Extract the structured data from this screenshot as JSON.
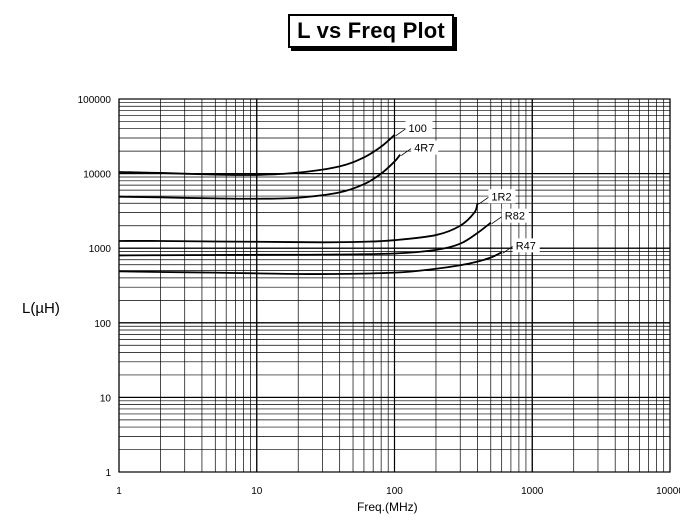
{
  "chart_data": {
    "type": "line",
    "title": "L vs Freq Plot",
    "xlabel": "Freq.(MHz)",
    "ylabel": "L(µH)",
    "x_scale": "log",
    "y_scale": "log",
    "xlim": [
      1,
      10000
    ],
    "ylim": [
      1,
      100000
    ],
    "x_ticks": [
      "1",
      "10",
      "100",
      "1000",
      "10000"
    ],
    "y_ticks": [
      "100000",
      "10000",
      "1000",
      "100",
      "10",
      "1"
    ],
    "grid": true,
    "series": [
      {
        "name": "100",
        "x": [
          1,
          2,
          5,
          10,
          20,
          40,
          60,
          80,
          100
        ],
        "y": [
          10500,
          10200,
          9700,
          9600,
          10300,
          12500,
          16500,
          23000,
          33000
        ]
      },
      {
        "name": "4R7",
        "x": [
          1,
          2,
          5,
          10,
          20,
          40,
          60,
          80,
          100,
          110
        ],
        "y": [
          4900,
          4800,
          4650,
          4600,
          4750,
          5600,
          7200,
          10000,
          14500,
          18000
        ]
      },
      {
        "name": "1R2",
        "x": [
          1,
          2,
          5,
          10,
          30,
          60,
          100,
          200,
          300,
          380,
          400
        ],
        "y": [
          1250,
          1250,
          1230,
          1220,
          1200,
          1220,
          1280,
          1500,
          2000,
          3000,
          4000
        ]
      },
      {
        "name": "R82",
        "x": [
          1,
          2,
          5,
          10,
          30,
          100,
          200,
          300,
          400,
          500
        ],
        "y": [
          800,
          805,
          810,
          815,
          820,
          850,
          950,
          1150,
          1600,
          2200
        ]
      },
      {
        "name": "R47",
        "x": [
          1,
          2,
          5,
          10,
          30,
          100,
          200,
          300,
          400,
          500,
          600
        ],
        "y": [
          490,
          480,
          470,
          460,
          450,
          470,
          530,
          590,
          660,
          750,
          880
        ]
      }
    ]
  }
}
